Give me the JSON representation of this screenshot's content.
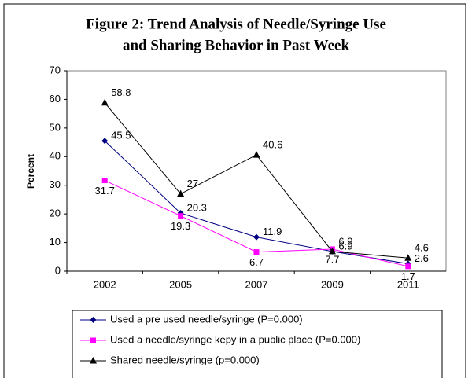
{
  "chart_data": {
    "type": "line",
    "title": "Figure 2: Trend Analysis of Needle/Syringe Use",
    "subtitle": "and Sharing Behavior in Past Week",
    "y_label": "Percent",
    "categories": [
      "2002",
      "2005",
      "2007",
      "2009",
      "2011"
    ],
    "series": [
      {
        "name": "Used a pre used needle/syringe (P=0.000)",
        "color": "#000080",
        "marker": "diamond",
        "values": [
          45.5,
          20.3,
          11.9,
          6.9,
          2.6
        ]
      },
      {
        "name": "Used a needle/syringe kepy in a public place (P=0.000)",
        "color": "#ff00ff",
        "marker": "square",
        "values": [
          31.7,
          19.3,
          6.7,
          7.7,
          1.7
        ]
      },
      {
        "name": "Shared needle/syringe (p=0.000)",
        "color": "#000000",
        "marker": "triangle",
        "values": [
          58.8,
          27,
          40.6,
          6.9,
          4.6
        ]
      }
    ],
    "ylim": [
      0,
      70
    ],
    "yticks": [
      0,
      10,
      20,
      30,
      40,
      50,
      60,
      70
    ]
  }
}
